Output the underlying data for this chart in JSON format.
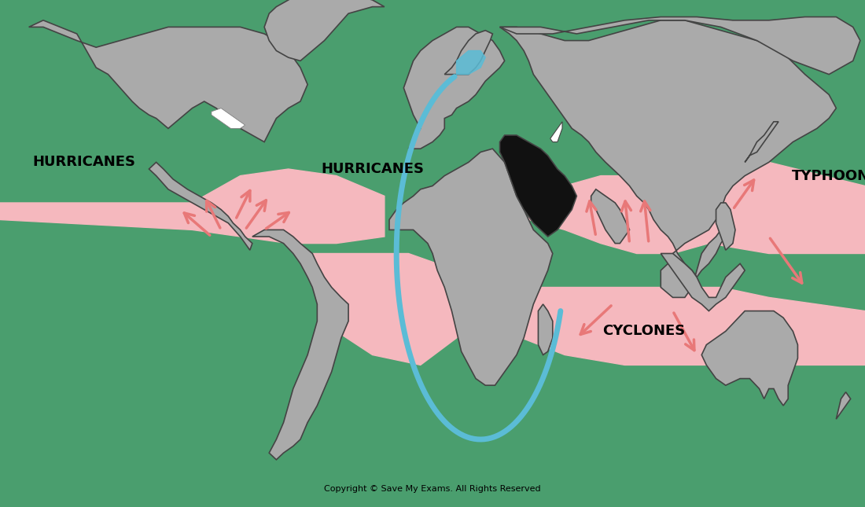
{
  "bg_color": "#4a9e6e",
  "land_color": "#aaaaaa",
  "land_edge": "#444444",
  "land_lw": 1.2,
  "pink_color": "#f5b8be",
  "pink_alpha": 1.0,
  "blue_color": "#5bbcd6",
  "blue_lw": 5,
  "arrow_color": "#e87878",
  "arrow_lw": 2.5,
  "black_color": "#111111",
  "white_color": "#ffffff",
  "copyright": "Copyright © Save My Exams. All Rights Reserved",
  "label_hurricanes_left": "HURRICANES",
  "label_hurricanes_mid": "HURRICANES",
  "label_cyclones": "CYCLONES",
  "label_typhoons": "TYPHOONS",
  "label_fontsize": 13,
  "label_fontweight": "bold"
}
